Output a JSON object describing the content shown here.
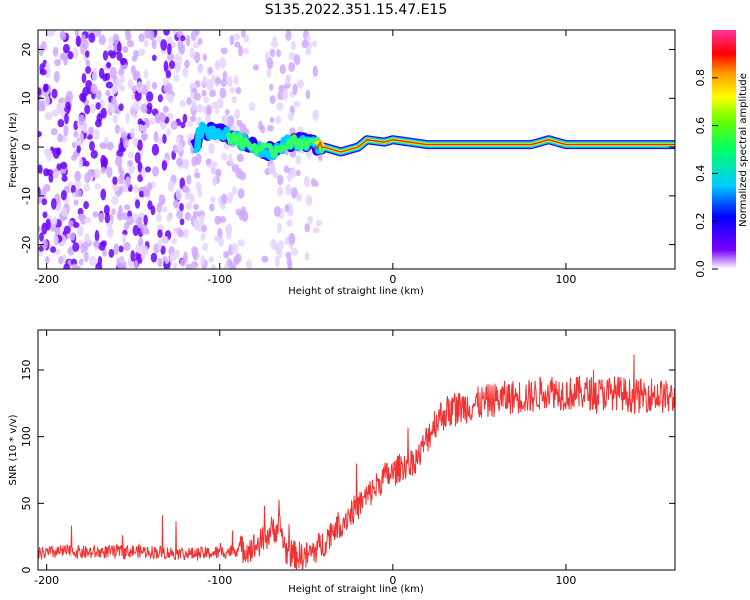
{
  "title": "S135.2022.351.15.47.E15",
  "chart_data": [
    {
      "type": "heatmap",
      "xlabel": "Height of straight line (km)",
      "ylabel": "Frequency (Hz)",
      "xlim": [
        -205,
        163
      ],
      "ylim": [
        -25,
        24
      ],
      "xticks": [
        -200,
        -100,
        0,
        100
      ],
      "yticks": [
        -20,
        -10,
        0,
        10,
        20
      ],
      "colorbar": {
        "label": "Normalized spectral amplitude",
        "range": [
          0.0,
          1.0
        ],
        "ticks": [
          0.0,
          0.2,
          0.4,
          0.6,
          0.8
        ]
      },
      "ridge": [
        {
          "x": -112,
          "y": 3.5
        },
        {
          "x": -100,
          "y": 3
        },
        {
          "x": -90,
          "y": 1.5
        },
        {
          "x": -80,
          "y": 0
        },
        {
          "x": -70,
          "y": -1
        },
        {
          "x": -60,
          "y": 1
        },
        {
          "x": -50,
          "y": 1
        },
        {
          "x": -40,
          "y": 0
        },
        {
          "x": -30,
          "y": -1
        },
        {
          "x": -20,
          "y": 0
        },
        {
          "x": -15,
          "y": 1.5
        },
        {
          "x": -5,
          "y": 1
        },
        {
          "x": 0,
          "y": 1.5
        },
        {
          "x": 20,
          "y": 0.5
        },
        {
          "x": 80,
          "y": 0.5
        },
        {
          "x": 90,
          "y": 1.5
        },
        {
          "x": 100,
          "y": 0.5
        },
        {
          "x": 163,
          "y": 0.5
        }
      ]
    },
    {
      "type": "line",
      "xlabel": "Height of straight line (km)",
      "ylabel": "SNR (10 * v/v)",
      "xlim": [
        -205,
        163
      ],
      "ylim": [
        0,
        180
      ],
      "xticks": [
        -200,
        -100,
        0,
        100
      ],
      "yticks": [
        0,
        50,
        100,
        150
      ],
      "color": "#f03232",
      "series": [
        {
          "x": [
            -205,
            -190,
            -175,
            -160,
            -145,
            -130,
            -115,
            -100,
            -90,
            -80,
            -75,
            -70,
            -65,
            -62,
            -60,
            -55,
            -50,
            -45,
            -40,
            -35,
            -30,
            -25,
            -20,
            -15,
            -10,
            -5,
            0,
            5,
            10,
            15,
            20,
            25,
            30,
            40,
            50,
            60,
            70,
            80,
            90,
            100,
            110,
            120,
            130,
            140,
            150,
            163
          ],
          "values": [
            12,
            14,
            13,
            14,
            14,
            13,
            12,
            13,
            15,
            17,
            22,
            30,
            32,
            15,
            12,
            11,
            10,
            15,
            20,
            30,
            35,
            42,
            48,
            55,
            62,
            70,
            72,
            78,
            80,
            85,
            100,
            112,
            118,
            122,
            125,
            128,
            130,
            130,
            135,
            132,
            133,
            132,
            133,
            130,
            132,
            128
          ]
        }
      ]
    }
  ]
}
